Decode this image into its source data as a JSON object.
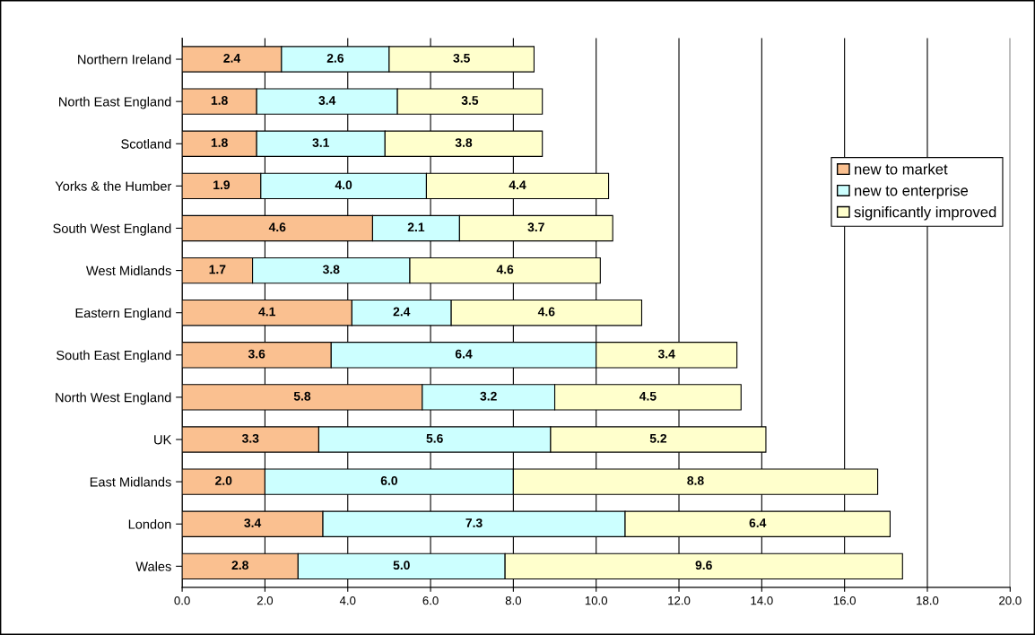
{
  "chart_data": {
    "type": "bar",
    "orientation": "horizontal",
    "stacked": true,
    "grid": "x",
    "legend": "right",
    "categories": [
      "Northern Ireland",
      "North East England",
      "Scotland",
      "Yorks & the Humber",
      "South West England",
      "West Midlands",
      "Eastern England",
      "South East England",
      "North West England",
      "UK",
      "East Midlands",
      "London",
      "Wales"
    ],
    "series": [
      {
        "name": "new to market",
        "color": "#fac090",
        "values": [
          2.4,
          1.8,
          1.8,
          1.9,
          4.6,
          1.7,
          4.1,
          3.6,
          5.8,
          3.3,
          2.0,
          3.4,
          2.8
        ],
        "value_labels": [
          "2.4",
          "1.8",
          "1.8",
          "1.9",
          "4.6",
          "1.7",
          "4.1",
          "3.6",
          "5.8",
          "3.3",
          "2.0",
          "3.4",
          "2.8"
        ]
      },
      {
        "name": "new to enterprise",
        "color": "#ccffff",
        "values": [
          2.6,
          3.4,
          3.1,
          4.0,
          2.1,
          3.8,
          2.4,
          6.4,
          3.2,
          5.6,
          6.0,
          7.3,
          5.0
        ],
        "value_labels": [
          "2.6",
          "3.4",
          "3.1",
          "4.0",
          "2.1",
          "3.8",
          "2.4",
          "6.4",
          "3.2",
          "5.6",
          "6.0",
          "7.3",
          "5.0"
        ]
      },
      {
        "name": "significantly improved",
        "color": "#ffffcc",
        "values": [
          3.5,
          3.5,
          3.8,
          4.4,
          3.7,
          4.6,
          4.6,
          3.4,
          4.5,
          5.2,
          8.8,
          6.4,
          9.6
        ],
        "value_labels": [
          "3.5",
          "3.5",
          "3.8",
          "4.4",
          "3.7",
          "4.6",
          "4.6",
          "3.4",
          "4.5",
          "5.2",
          "8.8",
          "6.4",
          "9.6"
        ]
      }
    ],
    "xlim": [
      0,
      20
    ],
    "xticks": [
      {
        "value": 0,
        "label": "0.0"
      },
      {
        "value": 2,
        "label": "2.0"
      },
      {
        "value": 4,
        "label": "4.0"
      },
      {
        "value": 6,
        "label": "6.0"
      },
      {
        "value": 8,
        "label": "8.0"
      },
      {
        "value": 10,
        "label": "10.0"
      },
      {
        "value": 12,
        "label": "12.0"
      },
      {
        "value": 14,
        "label": "14.0"
      },
      {
        "value": 16,
        "label": "16.0"
      },
      {
        "value": 18,
        "label": "18.0"
      },
      {
        "value": 20,
        "label": "20.0"
      }
    ]
  }
}
